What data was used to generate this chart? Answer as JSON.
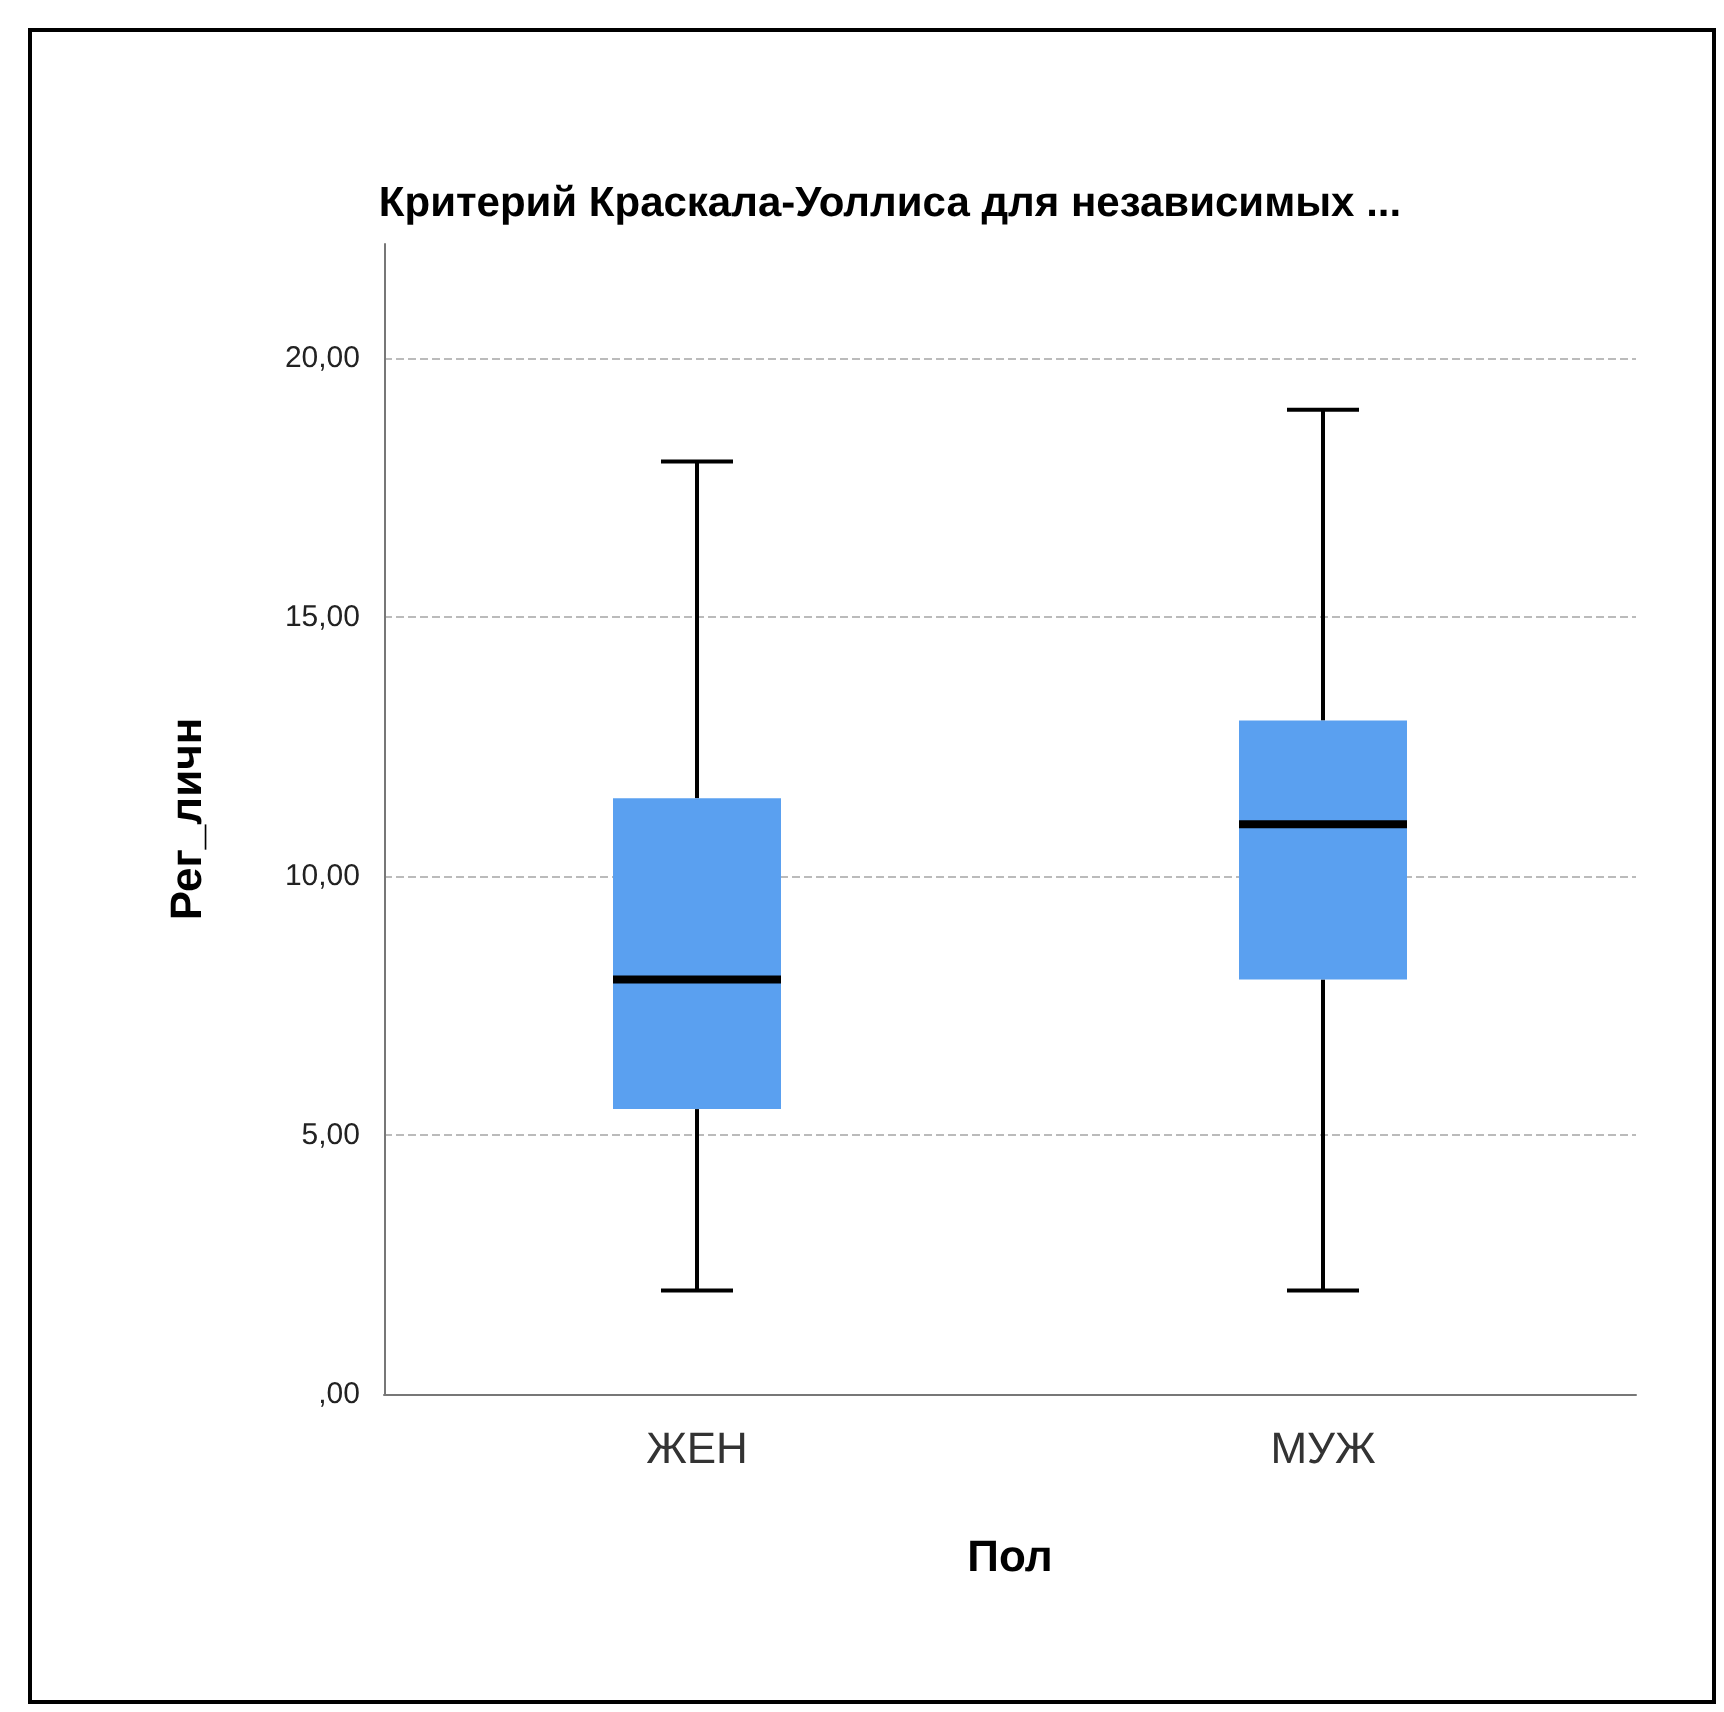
{
  "chart_data": {
    "type": "box",
    "title": "Критерий Краскала-Уоллиса для независимых ...",
    "xlabel": "Пол",
    "ylabel": "Рег_личн",
    "categories": [
      "ЖЕН",
      "МУЖ"
    ],
    "boxes": [
      {
        "low": 2,
        "q1": 5.5,
        "median": 8,
        "q3": 11.5,
        "high": 18
      },
      {
        "low": 2,
        "q1": 8,
        "median": 11,
        "q3": 13,
        "high": 19
      }
    ],
    "color": "#5aa0f0",
    "ylim": [
      0,
      22.2
    ],
    "yticks": [
      {
        "value": 0,
        "label": ",00"
      },
      {
        "value": 5,
        "label": "5,00"
      },
      {
        "value": 10,
        "label": "10,00"
      },
      {
        "value": 15,
        "label": "15,00"
      },
      {
        "value": 20,
        "label": "20,00"
      }
    ],
    "grid": "y"
  }
}
